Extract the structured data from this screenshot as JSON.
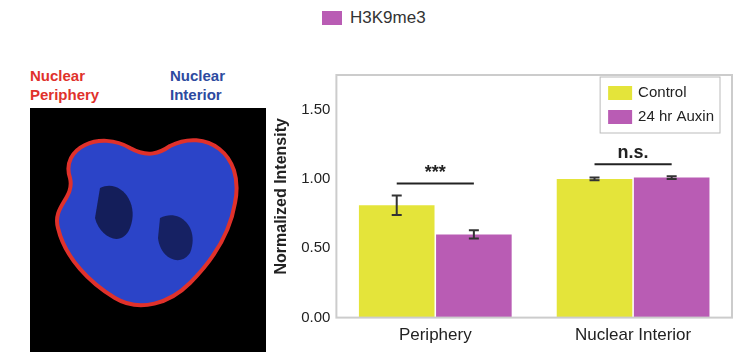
{
  "chart_data": {
    "type": "bar",
    "title": "H3K9me3",
    "categories": [
      "Periphery",
      "Nuclear Interior"
    ],
    "series": [
      {
        "name": "Control",
        "color": "#e4e43a",
        "values": [
          0.81,
          1.0
        ],
        "errors": [
          0.07,
          0.01
        ]
      },
      {
        "name": "24 hr Auxin",
        "color": "#b95cb4",
        "values": [
          0.6,
          1.01
        ],
        "errors": [
          0.03,
          0.01
        ]
      }
    ],
    "y_label": "Normalized Intensity",
    "ylim": [
      0,
      1.75
    ],
    "yticks": [
      {
        "value": 0,
        "label": "0.00"
      },
      {
        "value": 0.5,
        "label": "0.50"
      },
      {
        "value": 1,
        "label": "1.00"
      },
      {
        "value": 1.5,
        "label": "1.50"
      }
    ],
    "grid": false,
    "legend": "upper right",
    "annotations": [
      {
        "text": "***",
        "category": "Periphery"
      },
      {
        "text": "n.s.",
        "category": "Nuclear Interior"
      }
    ]
  },
  "image": {
    "labels": [
      {
        "text": "Nuclear Periphery",
        "color": "#e0312b"
      },
      {
        "text": "Nuclear Interior",
        "color": "#2d4aa0"
      }
    ]
  }
}
